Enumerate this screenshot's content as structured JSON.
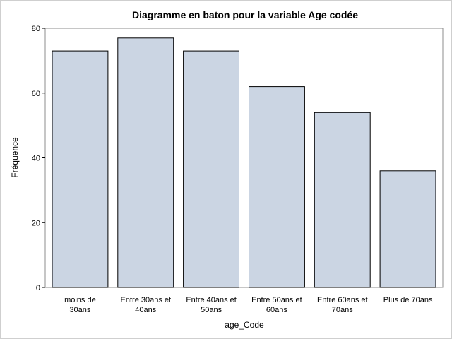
{
  "chart_data": {
    "type": "bar",
    "title": "Diagramme en baton pour la variable Age codée",
    "xlabel": "age_Code",
    "ylabel": "Fréquence",
    "categories": [
      [
        "moins de",
        "30ans"
      ],
      [
        "Entre 30ans et",
        "40ans"
      ],
      [
        "Entre 40ans et",
        "50ans"
      ],
      [
        "Entre 50ans et",
        "60ans"
      ],
      [
        "Entre 60ans et",
        "70ans"
      ],
      [
        "Plus de 70ans"
      ]
    ],
    "values": [
      73,
      77,
      73,
      62,
      54,
      36
    ],
    "ylim": [
      0,
      80
    ],
    "yticks": [
      0,
      20,
      40,
      60,
      80
    ],
    "grid": false,
    "bar_color": "#cbd5e3",
    "edge_color": "#000000"
  }
}
